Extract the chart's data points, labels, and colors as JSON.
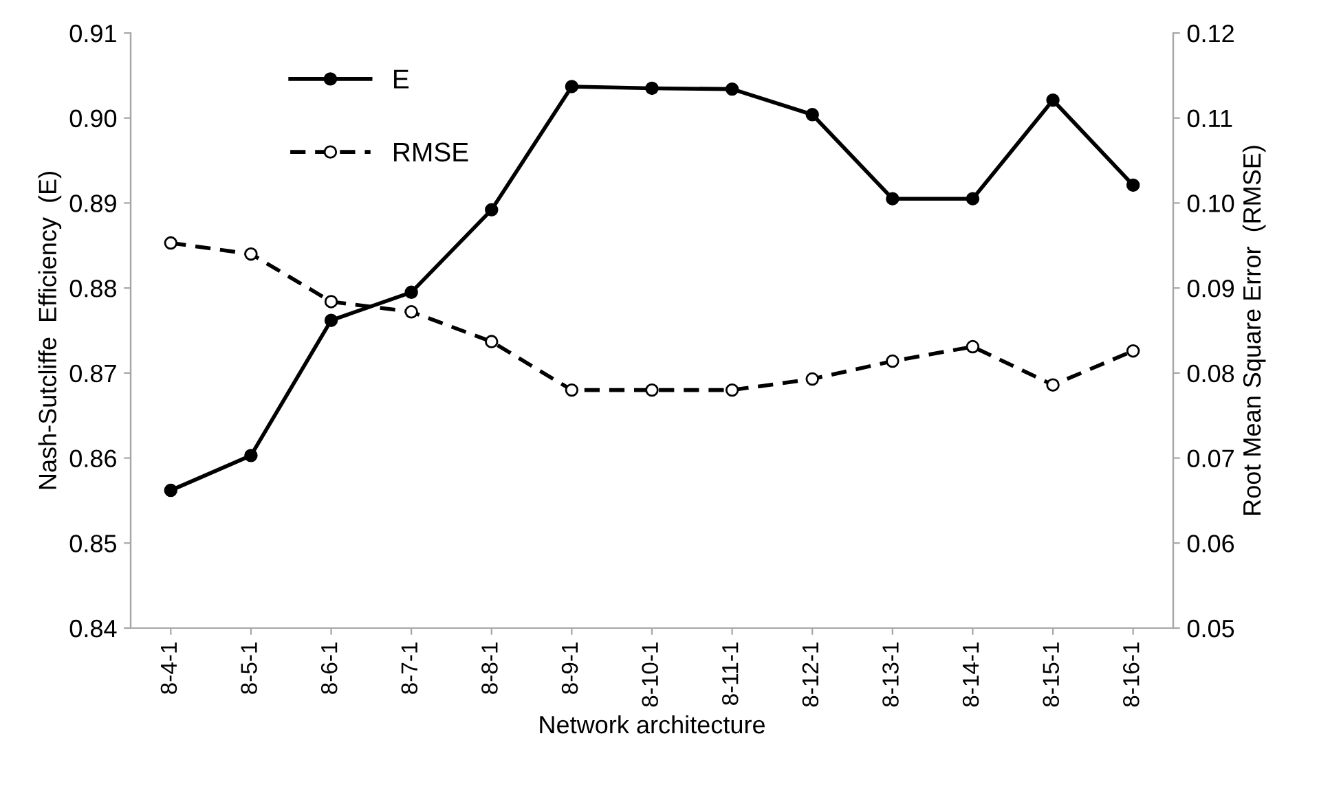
{
  "chart_data": {
    "type": "line",
    "xlabel": "Network architecture",
    "ylabel": "Nash-Sutcliffe  Efficiency  (E)",
    "y2label": "Root Mean Square Error  (RMSE)",
    "categories": [
      "8-4-1",
      "8-5-1",
      "8-6-1",
      "8-7-1",
      "8-8-1",
      "8-9-1",
      "8-10-1",
      "8-11-1",
      "8-12-1",
      "8-13-1",
      "8-14-1",
      "8-15-1",
      "8-16-1"
    ],
    "series": [
      {
        "name": "E",
        "color": "#000000",
        "line_style": "solid",
        "values": [
          0.8562,
          0.8603,
          0.8762,
          0.8795,
          0.8892,
          0.9037,
          0.9035,
          0.9034,
          0.9004,
          0.8905,
          0.8905,
          0.9021,
          0.8921
        ]
      },
      {
        "name": "RMSE",
        "color": "#000000",
        "line_style": "dashed",
        "axis": "y2",
        "values": [
          0.0953,
          0.094,
          0.0884,
          0.0872,
          0.0837,
          0.078,
          0.078,
          0.078,
          0.0793,
          0.0814,
          0.0831,
          0.0786,
          0.0826
        ]
      }
    ],
    "marker": "circle",
    "ylim": [
      0.84,
      0.91
    ],
    "yticks": [
      {
        "value": 0.84,
        "label": "0.84"
      },
      {
        "value": 0.85,
        "label": "0.85"
      },
      {
        "value": 0.86,
        "label": "0.86"
      },
      {
        "value": 0.87,
        "label": "0.87"
      },
      {
        "value": 0.88,
        "label": "0.88"
      },
      {
        "value": 0.89,
        "label": "0.89"
      },
      {
        "value": 0.9,
        "label": "0.90"
      },
      {
        "value": 0.91,
        "label": "0.91"
      }
    ],
    "y2lim": [
      0.05,
      0.12
    ],
    "y2ticks": [
      {
        "value": 0.05,
        "label": "0.05"
      },
      {
        "value": 0.06,
        "label": "0.06"
      },
      {
        "value": 0.07,
        "label": "0.07"
      },
      {
        "value": 0.08,
        "label": "0.08"
      },
      {
        "value": 0.09,
        "label": "0.09"
      },
      {
        "value": 0.1,
        "label": "0.10"
      },
      {
        "value": 0.11,
        "label": "0.11"
      },
      {
        "value": 0.12,
        "label": "0.12"
      }
    ],
    "legend": "top left",
    "grid": false
  }
}
